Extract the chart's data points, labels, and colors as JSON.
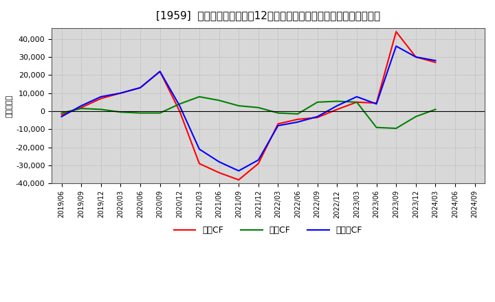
{
  "title": "[1959]  キャッシュフローの12か月移動合計の対前年同期増減額の推移",
  "ylabel": "（百万円）",
  "background_color": "#ffffff",
  "plot_bg_color": "#d8d8d8",
  "ylim": [
    -40000,
    46000
  ],
  "yticks": [
    -40000,
    -30000,
    -20000,
    -10000,
    0,
    10000,
    20000,
    30000,
    40000
  ],
  "x_labels": [
    "2019/06",
    "2019/09",
    "2019/12",
    "2020/03",
    "2020/06",
    "2020/09",
    "2020/12",
    "2021/03",
    "2021/06",
    "2021/09",
    "2021/12",
    "2022/03",
    "2022/06",
    "2022/09",
    "2022/12",
    "2023/03",
    "2023/06",
    "2023/09",
    "2023/12",
    "2024/03",
    "2024/06",
    "2024/09"
  ],
  "eigyo_cf": [
    -2000,
    2000,
    7000,
    10000,
    13000,
    22000,
    0,
    -29000,
    -34000,
    -38000,
    -29000,
    -7000,
    -4500,
    -3500,
    1000,
    5000,
    4500,
    44000,
    30000,
    27000,
    null,
    null
  ],
  "toshi_cf": [
    -1000,
    1500,
    1000,
    -500,
    -1000,
    -1000,
    4000,
    8000,
    6000,
    3000,
    2000,
    -1000,
    -1500,
    5000,
    5500,
    5000,
    -9000,
    -9500,
    -3000,
    1000,
    null,
    null
  ],
  "free_cf": [
    -3000,
    3000,
    8000,
    10000,
    13000,
    22000,
    3000,
    -21000,
    -28000,
    -33000,
    -27000,
    -8000,
    -6000,
    -3000,
    3000,
    8000,
    4000,
    36000,
    30000,
    28000,
    null,
    null
  ],
  "eigyo_color": "#ff0000",
  "toshi_color": "#008000",
  "free_color": "#0000ff",
  "legend_labels": [
    "営業CF",
    "投資CF",
    "フリーCF"
  ]
}
